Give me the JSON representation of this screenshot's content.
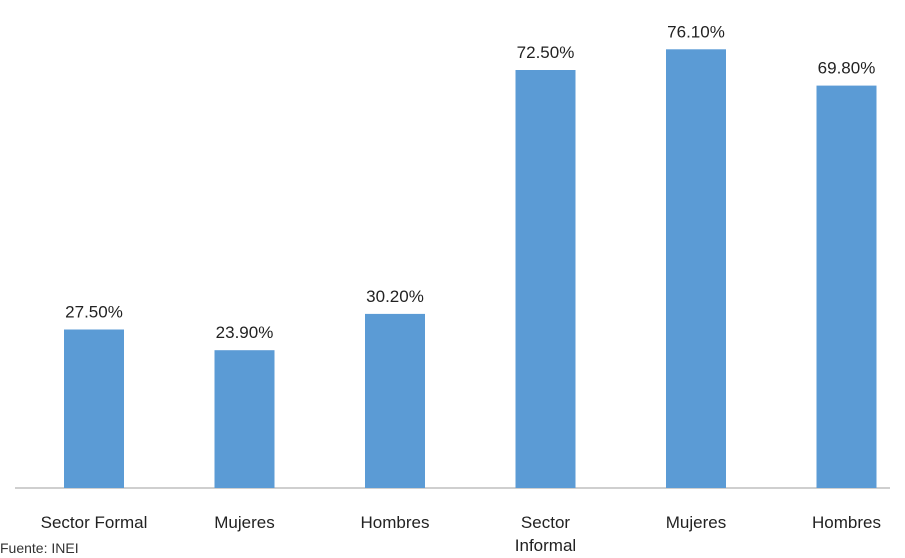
{
  "chart_data": {
    "type": "bar",
    "categories": [
      "Sector Formal",
      "Mujeres",
      "Hombres",
      "Sector Informal",
      "Mujeres",
      "Hombres"
    ],
    "values": [
      27.5,
      23.9,
      30.2,
      72.5,
      76.1,
      69.8
    ],
    "data_labels": [
      "27.50%",
      "23.90%",
      "30.20%",
      "72.50%",
      "76.10%",
      "69.80%"
    ],
    "category_label_lines": [
      [
        "Sector Formal"
      ],
      [
        "Mujeres"
      ],
      [
        "Hombres"
      ],
      [
        "Sector",
        "Informal"
      ],
      [
        "Mujeres"
      ],
      [
        "Hombres"
      ]
    ],
    "title": "",
    "xlabel": "",
    "ylabel": "",
    "ylim": [
      0,
      85
    ],
    "grid": false,
    "bar_color": "#5b9bd5",
    "axis_color": "#bfbfbf"
  },
  "footer": {
    "source": "Fuente: INEI"
  }
}
